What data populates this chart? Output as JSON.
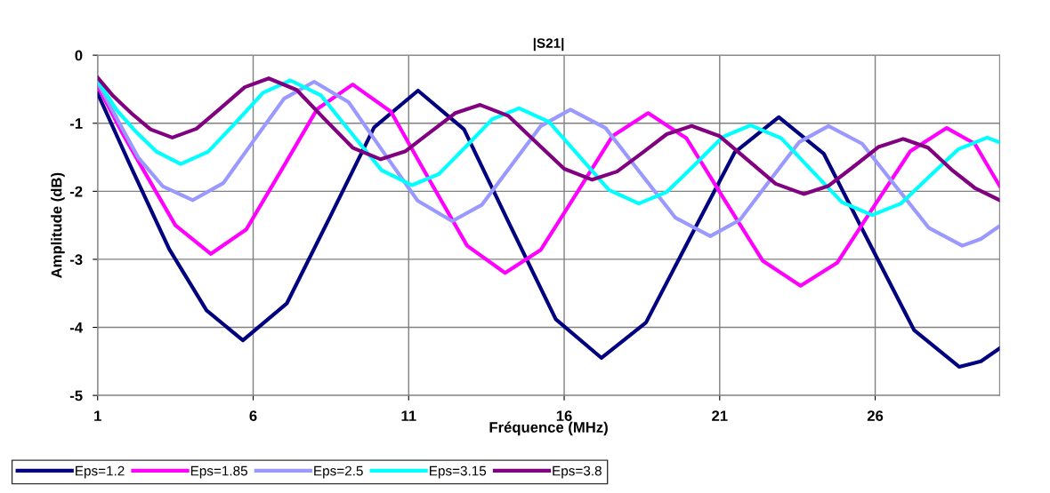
{
  "chart_data": {
    "type": "line",
    "title": "|S21|",
    "xlabel": "Fréquence (MHz)",
    "ylabel": "Amplitude (dB)",
    "xlim": [
      1,
      30
    ],
    "xticks": [
      1,
      6,
      11,
      16,
      21,
      26
    ],
    "ylim": [
      -5,
      0
    ],
    "yticks": [
      -5,
      -4,
      -3,
      -2,
      -1,
      0
    ],
    "grid": true,
    "legend": "bottom",
    "marker": "none",
    "line_style": "solid",
    "series": [
      {
        "name": "Eps=1.2",
        "color": "#000080",
        "x": [
          1,
          2.1,
          3.3,
          4.5,
          5.67,
          7.08,
          8.49,
          9.89,
          11.3,
          12.78,
          14.25,
          15.73,
          17.2,
          18.63,
          20.05,
          21.48,
          22.9,
          24.35,
          25.8,
          27.25,
          28.7,
          29.4,
          30
        ],
        "values": [
          -0.56,
          -1.67,
          -2.85,
          -3.75,
          -4.19,
          -3.65,
          -2.36,
          -1.06,
          -0.52,
          -1.09,
          -2.49,
          -3.88,
          -4.45,
          -3.93,
          -2.68,
          -1.43,
          -0.91,
          -1.45,
          -2.75,
          -4.04,
          -4.58,
          -4.5,
          -4.31
        ]
      },
      {
        "name": "Eps=1.85",
        "color": "#ff00ff",
        "x": [
          1,
          1.8,
          2.5,
          3.5,
          4.64,
          5.78,
          6.92,
          8.06,
          9.2,
          10.43,
          11.65,
          12.88,
          14.1,
          15.25,
          16.4,
          17.55,
          18.7,
          19.93,
          21.15,
          22.38,
          23.6,
          24.78,
          25.95,
          27.13,
          28.3,
          29.2,
          30
        ],
        "values": [
          -0.45,
          -1.15,
          -1.71,
          -2.5,
          -2.92,
          -2.56,
          -1.68,
          -0.79,
          -0.43,
          -0.83,
          -1.82,
          -2.8,
          -3.2,
          -2.86,
          -2.03,
          -1.19,
          -0.85,
          -1.22,
          -2.12,
          -3.02,
          -3.39,
          -3.05,
          -2.23,
          -1.41,
          -1.07,
          -1.3,
          -1.92
        ]
      },
      {
        "name": "Eps=2.5",
        "color": "#9999ff",
        "x": [
          1,
          1.7,
          2.3,
          3.1,
          4.06,
          5.04,
          6.01,
          6.99,
          7.96,
          9.07,
          10.18,
          11.29,
          12.4,
          13.35,
          14.3,
          15.25,
          16.2,
          17.33,
          18.45,
          19.58,
          20.7,
          21.65,
          22.6,
          23.55,
          24.5,
          25.58,
          26.65,
          27.73,
          28.8,
          29.4,
          30
        ],
        "values": [
          -0.4,
          -1.0,
          -1.5,
          -1.93,
          -2.13,
          -1.88,
          -1.26,
          -0.64,
          -0.39,
          -0.69,
          -1.42,
          -2.14,
          -2.44,
          -2.2,
          -1.62,
          -1.04,
          -0.8,
          -1.07,
          -1.73,
          -2.39,
          -2.66,
          -2.42,
          -1.85,
          -1.28,
          -1.04,
          -1.3,
          -1.92,
          -2.54,
          -2.8,
          -2.7,
          -2.51
        ]
      },
      {
        "name": "Eps=3.15",
        "color": "#00ffff",
        "x": [
          1,
          1.6,
          2.2,
          2.9,
          3.67,
          4.55,
          5.44,
          6.32,
          7.2,
          8.18,
          9.15,
          10.13,
          11.1,
          11.96,
          12.83,
          13.69,
          14.55,
          15.51,
          16.48,
          17.44,
          18.4,
          19.3,
          20.2,
          21.1,
          22.0,
          22.98,
          23.95,
          24.93,
          25.9,
          26.83,
          27.75,
          28.68,
          29.6,
          30
        ],
        "values": [
          -0.37,
          -0.8,
          -1.11,
          -1.42,
          -1.6,
          -1.42,
          -0.99,
          -0.55,
          -0.37,
          -0.59,
          -1.14,
          -1.69,
          -1.91,
          -1.75,
          -1.35,
          -0.94,
          -0.78,
          -0.98,
          -1.48,
          -1.98,
          -2.18,
          -2.01,
          -1.61,
          -1.2,
          -1.03,
          -1.22,
          -1.69,
          -2.16,
          -2.35,
          -2.18,
          -1.78,
          -1.38,
          -1.21,
          -1.28
        ]
      },
      {
        "name": "Eps=3.8",
        "color": "#800080",
        "x": [
          1,
          1.5,
          2.1,
          2.7,
          3.4,
          4.18,
          4.95,
          5.73,
          6.5,
          7.4,
          8.3,
          9.2,
          10.1,
          10.9,
          11.7,
          12.5,
          13.3,
          14.2,
          15.1,
          16.0,
          16.9,
          17.7,
          18.5,
          19.3,
          20.1,
          21.0,
          21.9,
          22.8,
          23.7,
          24.5,
          25.3,
          26.1,
          26.9,
          27.7,
          28.45,
          29.2,
          30
        ],
        "values": [
          -0.33,
          -0.6,
          -0.86,
          -1.09,
          -1.21,
          -1.08,
          -0.78,
          -0.47,
          -0.34,
          -0.51,
          -0.94,
          -1.36,
          -1.53,
          -1.41,
          -1.13,
          -0.85,
          -0.73,
          -0.89,
          -1.28,
          -1.67,
          -1.83,
          -1.71,
          -1.44,
          -1.16,
          -1.04,
          -1.19,
          -1.54,
          -1.89,
          -2.04,
          -1.92,
          -1.64,
          -1.35,
          -1.23,
          -1.36,
          -1.68,
          -1.95,
          -2.13
        ]
      }
    ]
  }
}
